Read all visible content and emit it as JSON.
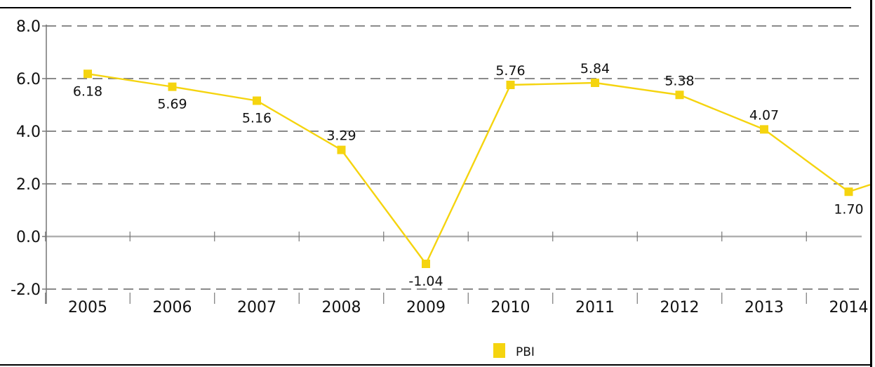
{
  "chart_data": {
    "type": "line",
    "categories": [
      "2005",
      "2006",
      "2007",
      "2008",
      "2009",
      "2010",
      "2011",
      "2012",
      "2013",
      "2014"
    ],
    "series": [
      {
        "name": "PBI",
        "values": [
          6.18,
          5.69,
          5.16,
          3.29,
          -1.04,
          5.76,
          5.84,
          5.38,
          4.07,
          1.7
        ],
        "labels": [
          "6.18",
          "5.69",
          "5.16",
          "3.29",
          "-1.04",
          "5.76",
          "5.84",
          "5.38",
          "4.07",
          "1.70"
        ],
        "color": "#f5d40f"
      }
    ],
    "yticks": [
      "8.0",
      "6.0",
      "4.0",
      "2.0",
      "0.0",
      "-2.0"
    ],
    "ylim": [
      -2,
      8
    ],
    "grid": "dashed horizontal",
    "legend": "bottom",
    "title": "",
    "xlabel": "",
    "ylabel": ""
  },
  "colors": {
    "series": "#f5d40f",
    "grid": "#8a8a8a",
    "axis": "#777777",
    "zero_line": "#b0b0b0"
  }
}
